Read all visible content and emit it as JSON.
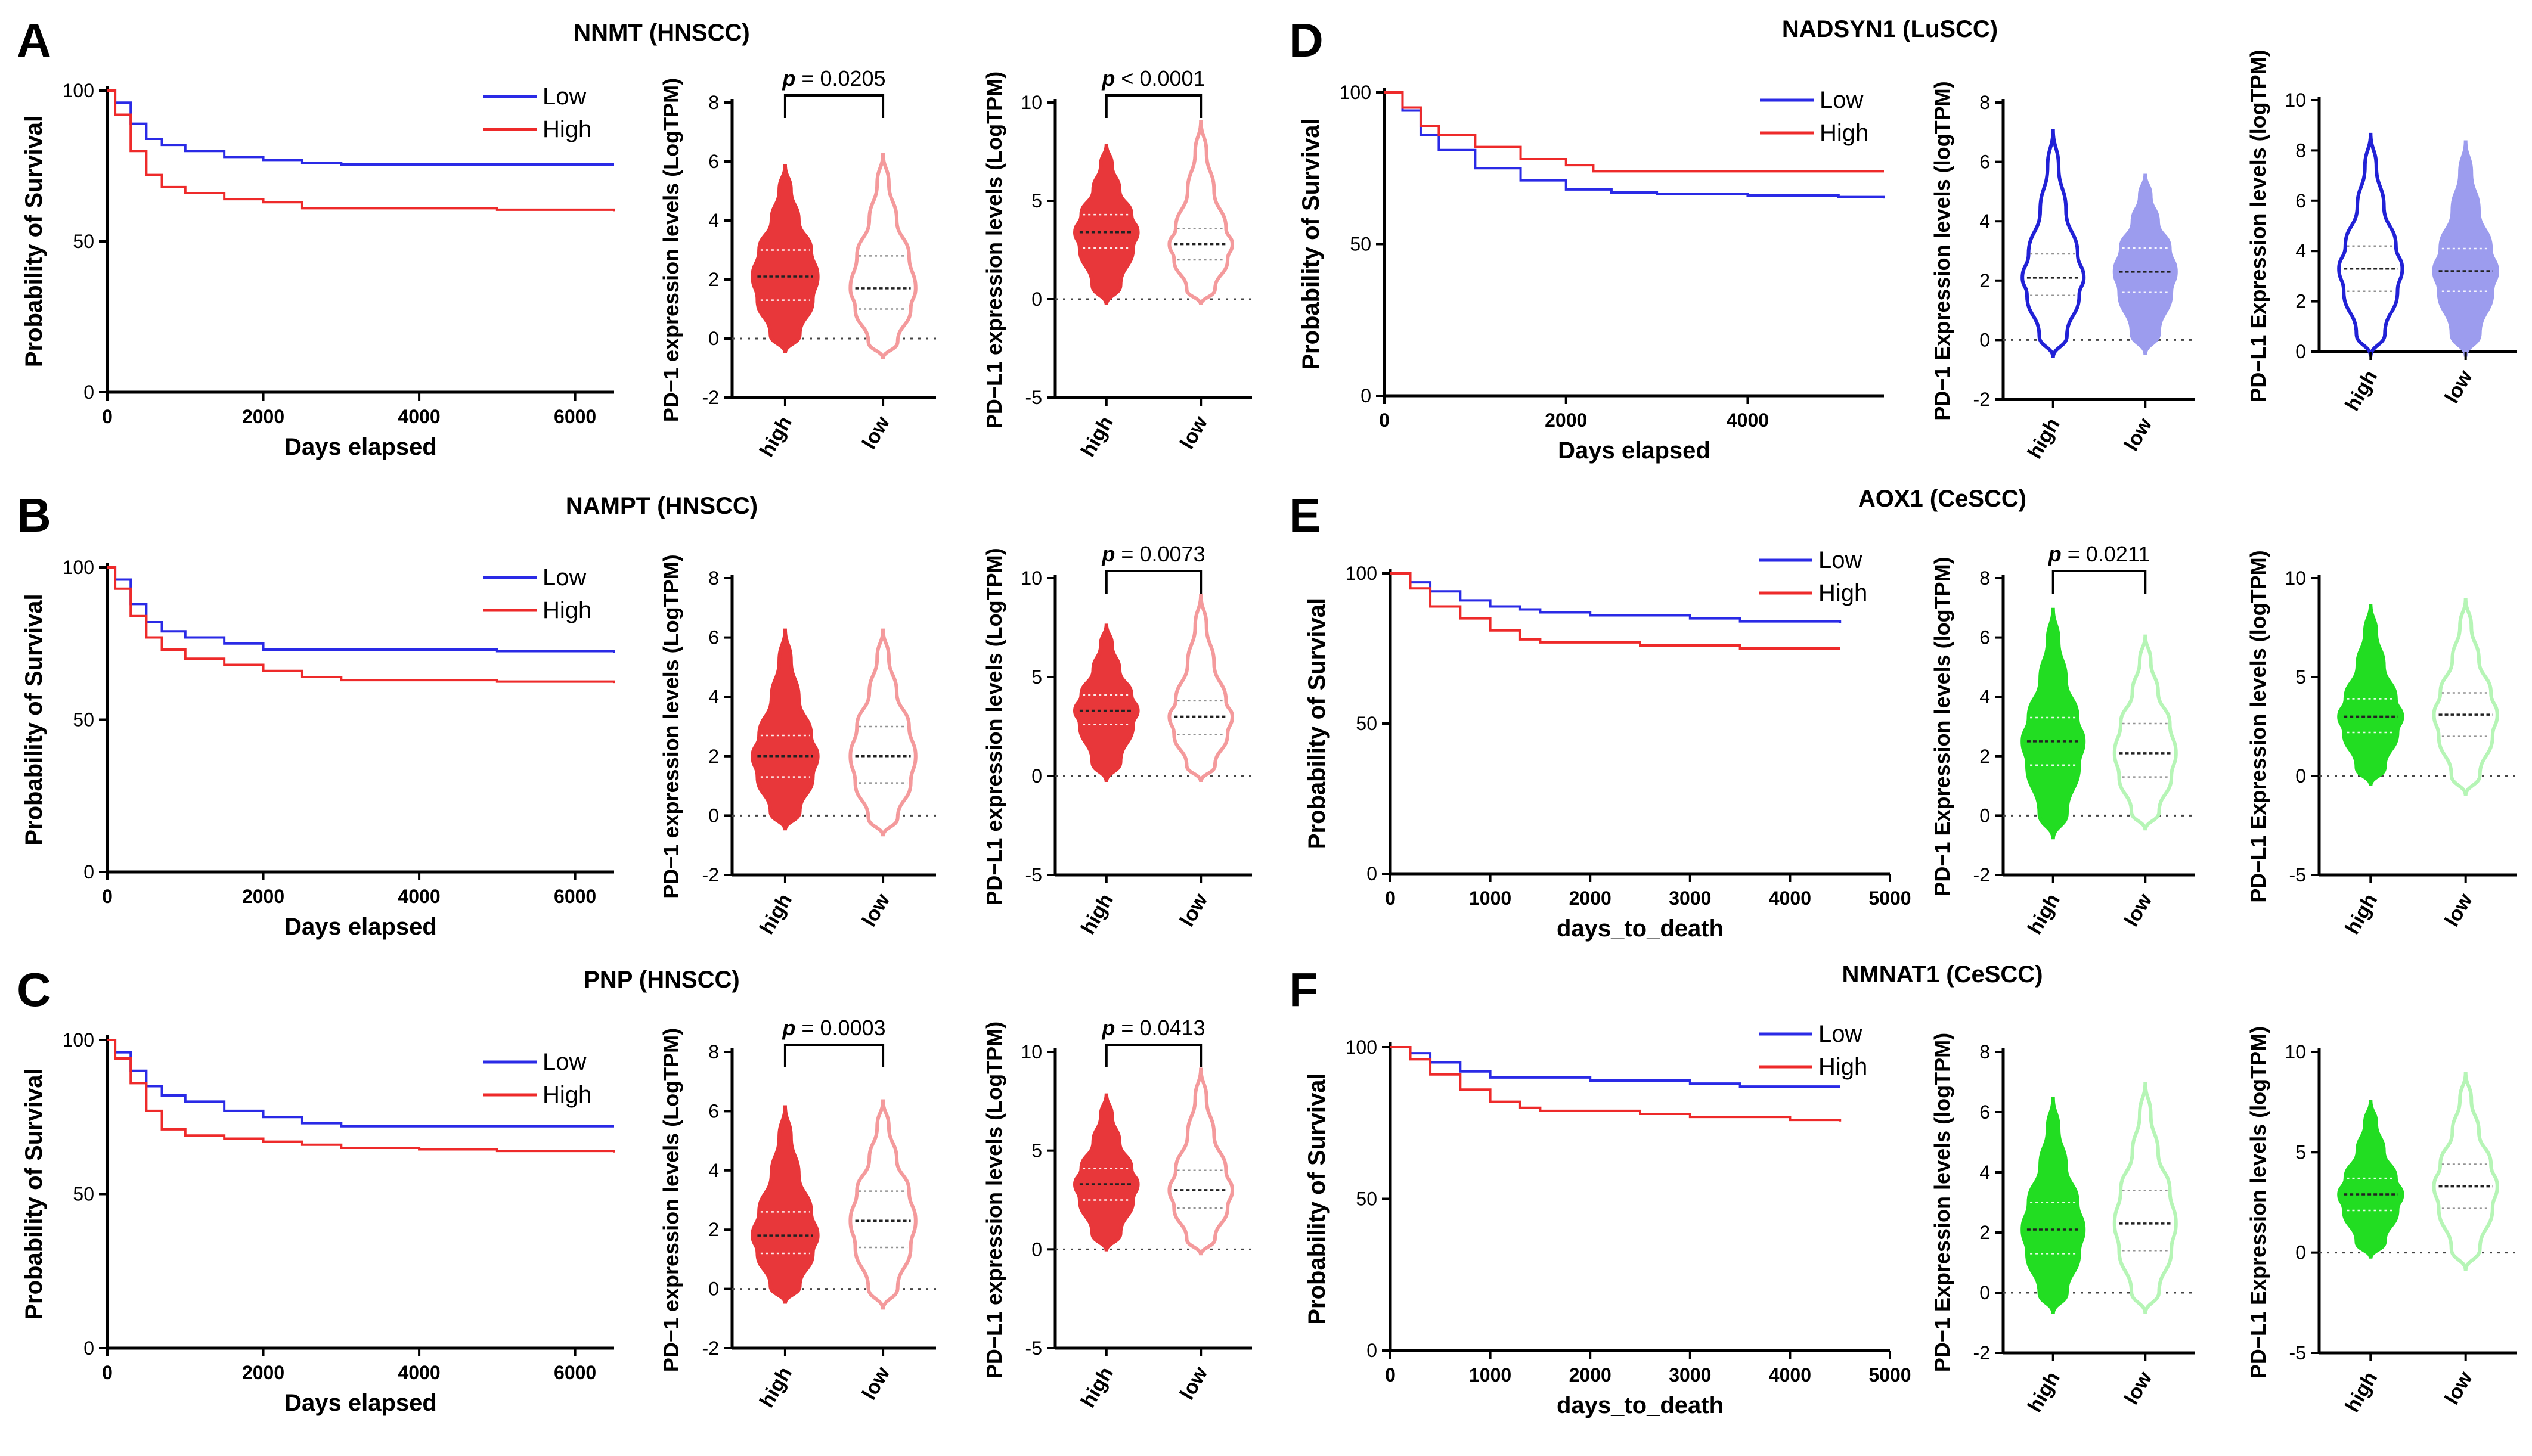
{
  "colors": {
    "low_blue": "#2a2ae6",
    "high_red": "#ee2a2a",
    "red_fill": "#e8373a",
    "red_light": "#f49a9c",
    "blue_fill": "#2121d6",
    "blue_light": "#9c9cee",
    "green_fill": "#22dd22",
    "green_light": "#b6f5b6"
  },
  "chart_data": [
    {
      "type": "line",
      "id": "A-km",
      "panel_letter": "A",
      "title": "NNMT (HNSCC)",
      "xlabel": "Days elapsed",
      "ylabel": "Probability of Survival",
      "xlim": [
        0,
        6500
      ],
      "ylim": [
        0,
        100
      ],
      "xticks": [
        0,
        2000,
        4000,
        6000
      ],
      "yticks": [
        0,
        50,
        100
      ],
      "series": [
        {
          "name": "Low",
          "color": "#2a2ae6",
          "x": [
            0,
            100,
            300,
            500,
            700,
            1000,
            1500,
            2000,
            2500,
            3000,
            4000,
            5000,
            6500
          ],
          "y": [
            100,
            96,
            89,
            84,
            82,
            80,
            78,
            77,
            76,
            75.5,
            75.5,
            75.5,
            75.5
          ]
        },
        {
          "name": "High",
          "color": "#ee2a2a",
          "x": [
            0,
            100,
            300,
            500,
            700,
            1000,
            1500,
            2000,
            2500,
            3000,
            4000,
            5000,
            6500
          ],
          "y": [
            100,
            92,
            80,
            72,
            68,
            66,
            64,
            63,
            61,
            61,
            61,
            60.5,
            60
          ]
        }
      ]
    },
    {
      "type": "violin",
      "id": "A-pd1",
      "ylabel": "PD−1 expression levels (LogTPM)",
      "ylim": [
        -2,
        8
      ],
      "yticks": [
        -2,
        0,
        2,
        4,
        6,
        8
      ],
      "categories": [
        "high",
        "low"
      ],
      "fills": [
        "#e8373a",
        "#ffffff"
      ],
      "strokes": [
        "#e8373a",
        "#f49a9c"
      ],
      "groups": [
        {
          "min": -0.5,
          "q1": 1.3,
          "median": 2.1,
          "q3": 3.0,
          "max": 5.9
        },
        {
          "min": -0.7,
          "q1": 1.0,
          "median": 1.7,
          "q3": 2.8,
          "max": 6.3
        }
      ],
      "pvalue": "0.0205",
      "p_operator": "="
    },
    {
      "type": "violin",
      "id": "A-pdl1",
      "ylabel": "PD−L1 expression levels (LogTPM)",
      "ylim": [
        -5,
        10
      ],
      "yticks": [
        -5,
        0,
        5,
        10
      ],
      "categories": [
        "high",
        "low"
      ],
      "fills": [
        "#e8373a",
        "#ffffff"
      ],
      "strokes": [
        "#e8373a",
        "#f49a9c"
      ],
      "groups": [
        {
          "min": -0.3,
          "q1": 2.6,
          "median": 3.4,
          "q3": 4.3,
          "max": 7.9
        },
        {
          "min": -0.3,
          "q1": 2.0,
          "median": 2.8,
          "q3": 3.6,
          "max": 9.1
        }
      ],
      "pvalue": "0.0001",
      "p_operator": "<"
    },
    {
      "type": "line",
      "id": "B-km",
      "panel_letter": "B",
      "title": "NAMPT (HNSCC)",
      "xlabel": "Days elapsed",
      "ylabel": "Probability of Survival",
      "xlim": [
        0,
        6500
      ],
      "ylim": [
        0,
        100
      ],
      "xticks": [
        0,
        2000,
        4000,
        6000
      ],
      "yticks": [
        0,
        50,
        100
      ],
      "series": [
        {
          "name": "Low",
          "color": "#2a2ae6",
          "x": [
            0,
            100,
            300,
            500,
            700,
            1000,
            1500,
            2000,
            2500,
            3000,
            4000,
            5000,
            6500
          ],
          "y": [
            100,
            96,
            88,
            82,
            79,
            77,
            75,
            73,
            73,
            73,
            73,
            72.5,
            72
          ]
        },
        {
          "name": "High",
          "color": "#ee2a2a",
          "x": [
            0,
            100,
            300,
            500,
            700,
            1000,
            1500,
            2000,
            2500,
            3000,
            4000,
            5000,
            6500
          ],
          "y": [
            100,
            93,
            84,
            77,
            73,
            70,
            68,
            66,
            64,
            63,
            63,
            62.5,
            62
          ]
        }
      ]
    },
    {
      "type": "violin",
      "id": "B-pd1",
      "ylabel": "PD−1 expression levels (LogTPM)",
      "ylim": [
        -2,
        8
      ],
      "yticks": [
        -2,
        0,
        2,
        4,
        6,
        8
      ],
      "categories": [
        "high",
        "low"
      ],
      "fills": [
        "#e8373a",
        "#ffffff"
      ],
      "strokes": [
        "#e8373a",
        "#f49a9c"
      ],
      "groups": [
        {
          "min": -0.5,
          "q1": 1.3,
          "median": 2.0,
          "q3": 2.7,
          "max": 6.3
        },
        {
          "min": -0.7,
          "q1": 1.1,
          "median": 2.0,
          "q3": 3.0,
          "max": 6.3
        }
      ],
      "pvalue": null,
      "p_operator": null
    },
    {
      "type": "violin",
      "id": "B-pdl1",
      "ylabel": "PD−L1 expression levels (LogTPM)",
      "ylim": [
        -5,
        10
      ],
      "yticks": [
        -5,
        0,
        5,
        10
      ],
      "categories": [
        "high",
        "low"
      ],
      "fills": [
        "#e8373a",
        "#ffffff"
      ],
      "strokes": [
        "#e8373a",
        "#f49a9c"
      ],
      "groups": [
        {
          "min": -0.3,
          "q1": 2.6,
          "median": 3.3,
          "q3": 4.1,
          "max": 7.7
        },
        {
          "min": -0.3,
          "q1": 2.1,
          "median": 3.0,
          "q3": 3.8,
          "max": 9.2
        }
      ],
      "pvalue": "0.0073",
      "p_operator": "="
    },
    {
      "type": "line",
      "id": "C-km",
      "panel_letter": "C",
      "title": "PNP (HNSCC)",
      "xlabel": "Days elapsed",
      "ylabel": "Probability of Survival",
      "xlim": [
        0,
        6500
      ],
      "ylim": [
        0,
        100
      ],
      "xticks": [
        0,
        2000,
        4000,
        6000
      ],
      "yticks": [
        0,
        50,
        100
      ],
      "series": [
        {
          "name": "Low",
          "color": "#2a2ae6",
          "x": [
            0,
            100,
            300,
            500,
            700,
            1000,
            1500,
            2000,
            2500,
            3000,
            4000,
            5000,
            6500
          ],
          "y": [
            100,
            96,
            90,
            85,
            82,
            80,
            77,
            75,
            73,
            72,
            72,
            72,
            72
          ]
        },
        {
          "name": "High",
          "color": "#ee2a2a",
          "x": [
            0,
            100,
            300,
            500,
            700,
            1000,
            1500,
            2000,
            2500,
            3000,
            4000,
            5000,
            6500
          ],
          "y": [
            100,
            94,
            86,
            77,
            71,
            69,
            68,
            67,
            66,
            65,
            64.5,
            64,
            63.5
          ]
        }
      ]
    },
    {
      "type": "violin",
      "id": "C-pd1",
      "ylabel": "PD−1 expression levels (LogTPM)",
      "ylim": [
        -2,
        8
      ],
      "yticks": [
        -2,
        0,
        2,
        4,
        6,
        8
      ],
      "categories": [
        "high",
        "low"
      ],
      "fills": [
        "#e8373a",
        "#ffffff"
      ],
      "strokes": [
        "#e8373a",
        "#f49a9c"
      ],
      "groups": [
        {
          "min": -0.5,
          "q1": 1.2,
          "median": 1.8,
          "q3": 2.6,
          "max": 6.2
        },
        {
          "min": -0.7,
          "q1": 1.4,
          "median": 2.3,
          "q3": 3.3,
          "max": 6.4
        }
      ],
      "pvalue": "0.0003",
      "p_operator": "="
    },
    {
      "type": "violin",
      "id": "C-pdl1",
      "ylabel": "PD−L1 expression levels (LogTPM)",
      "ylim": [
        -5,
        10
      ],
      "yticks": [
        -5,
        0,
        5,
        10
      ],
      "categories": [
        "high",
        "low"
      ],
      "fills": [
        "#e8373a",
        "#ffffff"
      ],
      "strokes": [
        "#e8373a",
        "#f49a9c"
      ],
      "groups": [
        {
          "min": -0.1,
          "q1": 2.5,
          "median": 3.3,
          "q3": 4.1,
          "max": 7.9
        },
        {
          "min": -0.3,
          "q1": 2.1,
          "median": 3.0,
          "q3": 4.0,
          "max": 9.2
        }
      ],
      "pvalue": "0.0413",
      "p_operator": "="
    },
    {
      "type": "line",
      "id": "D-km",
      "panel_letter": "D",
      "title": "NADSYN1 (LuSCC)",
      "xlabel": "Days elapsed",
      "ylabel": "Probability of Survival",
      "xlim": [
        0,
        5500
      ],
      "ylim": [
        0,
        100
      ],
      "xticks": [
        0,
        2000,
        4000
      ],
      "yticks": [
        0,
        50,
        100
      ],
      "series": [
        {
          "name": "Low",
          "color": "#2a2ae6",
          "x": [
            0,
            200,
            400,
            600,
            1000,
            1500,
            2000,
            2500,
            3000,
            4000,
            5000,
            5500
          ],
          "y": [
            100,
            94,
            86,
            81,
            75,
            71,
            68,
            67,
            66.5,
            66,
            65.5,
            65
          ]
        },
        {
          "name": "High",
          "color": "#ee2a2a",
          "x": [
            0,
            200,
            400,
            600,
            1000,
            1500,
            2000,
            2300,
            3000,
            4000,
            5000,
            5500
          ],
          "y": [
            100,
            95,
            89,
            86,
            82,
            78,
            76,
            74,
            74,
            74,
            74,
            74
          ]
        }
      ]
    },
    {
      "type": "violin",
      "id": "D-pd1",
      "ylabel": "PD−1 Expression levels (logTPM)",
      "ylim": [
        -2,
        8
      ],
      "yticks": [
        -2,
        0,
        2,
        4,
        6,
        8
      ],
      "categories": [
        "high",
        "low"
      ],
      "fills": [
        "#ffffff",
        "#9c9cee"
      ],
      "strokes": [
        "#2121d6",
        "#9c9cee"
      ],
      "groups": [
        {
          "min": -0.6,
          "q1": 1.5,
          "median": 2.1,
          "q3": 2.9,
          "max": 7.1
        },
        {
          "min": -0.5,
          "q1": 1.6,
          "median": 2.3,
          "q3": 3.1,
          "max": 5.6
        }
      ],
      "pvalue": null,
      "p_operator": null
    },
    {
      "type": "violin",
      "id": "D-pdl1",
      "ylabel": "PD−L1 Expression levels (logTPM)",
      "ylim": [
        0,
        10
      ],
      "yticks": [
        0,
        2,
        4,
        6,
        8,
        10
      ],
      "categories": [
        "high",
        "low"
      ],
      "fills": [
        "#ffffff",
        "#9c9cee"
      ],
      "strokes": [
        "#2121d6",
        "#9c9cee"
      ],
      "groups": [
        {
          "min": -0.2,
          "q1": 2.4,
          "median": 3.3,
          "q3": 4.2,
          "max": 8.7
        },
        {
          "min": -0.2,
          "q1": 2.4,
          "median": 3.2,
          "q3": 4.1,
          "max": 8.4
        }
      ],
      "pvalue": null,
      "p_operator": null
    },
    {
      "type": "line",
      "id": "E-km",
      "panel_letter": "E",
      "title": "AOX1 (CeSCC)",
      "xlabel": "days_to_death",
      "ylabel": "Probability of Survival",
      "xlim": [
        0,
        5000
      ],
      "ylim": [
        0,
        100
      ],
      "xticks": [
        0,
        1000,
        2000,
        3000,
        4000,
        5000
      ],
      "yticks": [
        0,
        50,
        100
      ],
      "series": [
        {
          "name": "Low",
          "color": "#2a2ae6",
          "x": [
            0,
            200,
            400,
            700,
            1000,
            1300,
            1500,
            2000,
            2500,
            3000,
            3500,
            4000,
            4500
          ],
          "y": [
            100,
            97,
            94,
            91,
            89,
            88,
            87,
            86,
            86,
            85,
            84,
            84,
            83.5
          ]
        },
        {
          "name": "High",
          "color": "#ee2a2a",
          "x": [
            0,
            200,
            400,
            700,
            1000,
            1300,
            1500,
            2000,
            2500,
            3000,
            3500,
            4000,
            4500
          ],
          "y": [
            100,
            95,
            89,
            85,
            81,
            78,
            77,
            77,
            76,
            76,
            75,
            75,
            75
          ]
        }
      ]
    },
    {
      "type": "violin",
      "id": "E-pd1",
      "ylabel": "PD−1 Expression levels (logTPM)",
      "ylim": [
        -2,
        8
      ],
      "yticks": [
        -2,
        0,
        2,
        4,
        6,
        8
      ],
      "categories": [
        "high",
        "low"
      ],
      "fills": [
        "#22dd22",
        "#ffffff"
      ],
      "strokes": [
        "#22dd22",
        "#b6f5b6"
      ],
      "groups": [
        {
          "min": -0.8,
          "q1": 1.7,
          "median": 2.5,
          "q3": 3.3,
          "max": 7.0
        },
        {
          "min": -0.5,
          "q1": 1.3,
          "median": 2.1,
          "q3": 3.1,
          "max": 6.1
        }
      ],
      "pvalue": "0.0211",
      "p_operator": "="
    },
    {
      "type": "violin",
      "id": "E-pdl1",
      "ylabel": "PD−L1 Expression levels (logTPM)",
      "ylim": [
        -5,
        10
      ],
      "yticks": [
        -5,
        0,
        5,
        10
      ],
      "categories": [
        "high",
        "low"
      ],
      "fills": [
        "#22dd22",
        "#ffffff"
      ],
      "strokes": [
        "#22dd22",
        "#b6f5b6"
      ],
      "groups": [
        {
          "min": -0.5,
          "q1": 2.2,
          "median": 3.0,
          "q3": 3.9,
          "max": 8.7
        },
        {
          "min": -1.0,
          "q1": 2.0,
          "median": 3.1,
          "q3": 4.2,
          "max": 9.0
        }
      ],
      "pvalue": null,
      "p_operator": null
    },
    {
      "type": "line",
      "id": "F-km",
      "panel_letter": "F",
      "title": "NMNAT1 (CeSCC)",
      "xlabel": "days_to_death",
      "ylabel": "Probability of Survival",
      "xlim": [
        0,
        5000
      ],
      "ylim": [
        0,
        100
      ],
      "xticks": [
        0,
        1000,
        2000,
        3000,
        4000,
        5000
      ],
      "yticks": [
        0,
        50,
        100
      ],
      "series": [
        {
          "name": "Low",
          "color": "#2a2ae6",
          "x": [
            0,
            200,
            400,
            700,
            1000,
            1500,
            2000,
            2500,
            3000,
            3500,
            4000,
            4500
          ],
          "y": [
            100,
            98,
            95,
            92,
            90,
            90,
            89,
            89,
            88,
            87,
            87,
            87
          ]
        },
        {
          "name": "High",
          "color": "#ee2a2a",
          "x": [
            0,
            200,
            400,
            700,
            1000,
            1300,
            1500,
            2000,
            2500,
            3000,
            3500,
            4000,
            4500
          ],
          "y": [
            100,
            96,
            91,
            86,
            82,
            80,
            79,
            79,
            78,
            77,
            77,
            76,
            75.5
          ]
        }
      ]
    },
    {
      "type": "violin",
      "id": "F-pd1",
      "ylabel": "PD−1 Expression levels (logTPM)",
      "ylim": [
        -2,
        8
      ],
      "yticks": [
        -2,
        0,
        2,
        4,
        6,
        8
      ],
      "categories": [
        "high",
        "low"
      ],
      "fills": [
        "#22dd22",
        "#ffffff"
      ],
      "strokes": [
        "#22dd22",
        "#b6f5b6"
      ],
      "groups": [
        {
          "min": -0.7,
          "q1": 1.3,
          "median": 2.1,
          "q3": 3.0,
          "max": 6.5
        },
        {
          "min": -0.7,
          "q1": 1.4,
          "median": 2.3,
          "q3": 3.4,
          "max": 7.0
        }
      ],
      "pvalue": null,
      "p_operator": null
    },
    {
      "type": "violin",
      "id": "F-pdl1",
      "ylabel": "PD−L1 Expression levels (logTPM)",
      "ylim": [
        -5,
        10
      ],
      "yticks": [
        -5,
        0,
        5,
        10
      ],
      "categories": [
        "high",
        "low"
      ],
      "fills": [
        "#22dd22",
        "#ffffff"
      ],
      "strokes": [
        "#22dd22",
        "#b6f5b6"
      ],
      "groups": [
        {
          "min": -0.3,
          "q1": 2.1,
          "median": 2.9,
          "q3": 3.7,
          "max": 7.6
        },
        {
          "min": -0.9,
          "q1": 2.2,
          "median": 3.3,
          "q3": 4.4,
          "max": 9.0
        }
      ],
      "pvalue": null,
      "p_operator": null
    }
  ]
}
